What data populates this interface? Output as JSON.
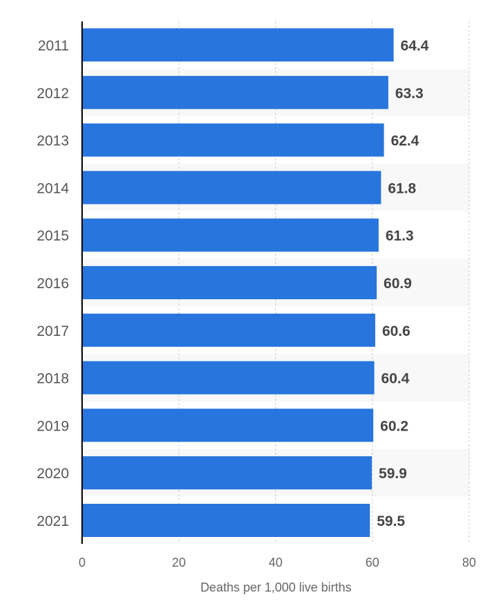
{
  "chart_data": {
    "type": "bar",
    "orientation": "horizontal",
    "categories": [
      "2011",
      "2012",
      "2013",
      "2014",
      "2015",
      "2016",
      "2017",
      "2018",
      "2019",
      "2020",
      "2021"
    ],
    "values": [
      64.4,
      63.3,
      62.4,
      61.8,
      61.3,
      60.9,
      60.6,
      60.4,
      60.2,
      59.9,
      59.5
    ],
    "value_labels": [
      "64.4",
      "63.3",
      "62.4",
      "61.8",
      "61.3",
      "60.9",
      "60.6",
      "60.4",
      "60.2",
      "59.9",
      "59.5"
    ],
    "xlabel": "Deaths per 1,000 live births",
    "ylabel": "",
    "xlim": [
      0,
      80
    ],
    "xticks": [
      0,
      20,
      40,
      60,
      80
    ],
    "xtick_labels": [
      "0",
      "20",
      "40",
      "60",
      "80"
    ],
    "grid": true,
    "legend": "none",
    "colors": {
      "bar": "#2876dd",
      "stripe": "#f8f8f8",
      "grid": "#c8c8c8",
      "axis": "#000000"
    }
  }
}
